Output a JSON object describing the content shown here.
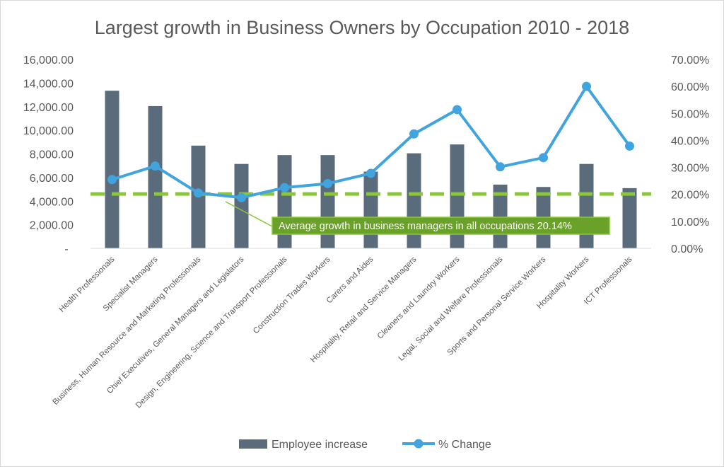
{
  "chart_data": {
    "type": "bar",
    "title": "Largest growth in Business Owners by Occupation 2010 - 2018",
    "categories": [
      "Health Professionals",
      "Specialist Managers",
      "Business, Human Resource and Marketing Professionals",
      "Chief Executives, General Managers and Legislators",
      "Design, Engineering, Science and Transport Professionals",
      "Construction Trades Workers",
      "Carers and Aides",
      "Hospitality, Retail and Service Managers",
      "Cleaners and Laundry Workers",
      "Legal, Social and Welfare Professionals",
      "Sports and Personal Service Workers",
      "Hospitality Workers",
      "ICT Professionals"
    ],
    "series": [
      {
        "name": "Employee increase",
        "type": "bar",
        "axis": "left",
        "color": "#5a6b7b",
        "values": [
          13350,
          12050,
          8700,
          7150,
          7900,
          7900,
          6500,
          8050,
          8800,
          5400,
          5200,
          7150,
          5100
        ]
      },
      {
        "name": "% Change",
        "type": "line",
        "axis": "right",
        "color": "#41a4de",
        "values": [
          0.255,
          0.305,
          0.205,
          0.188,
          0.225,
          0.24,
          0.278,
          0.424,
          0.514,
          0.302,
          0.336,
          0.6,
          0.379
        ]
      }
    ],
    "reference_line": {
      "axis": "right",
      "value": 0.2014,
      "color": "#8cc63e",
      "style": "dashed"
    },
    "annotation": {
      "text": "Average growth in business managers in all occupations 20.14%",
      "background": "#6aa229",
      "border": "#8cc63e"
    },
    "y_left": {
      "ylim": [
        0,
        16000
      ],
      "ticks": [
        0,
        2000,
        4000,
        6000,
        8000,
        10000,
        12000,
        14000,
        16000
      ],
      "tick_labels": [
        "-",
        "2,000.00",
        "4,000.00",
        "6,000.00",
        "8,000.00",
        "10,000.00",
        "12,000.00",
        "14,000.00",
        "16,000.00"
      ]
    },
    "y_right": {
      "ylim": [
        0,
        0.7
      ],
      "ticks": [
        0,
        0.1,
        0.2,
        0.3,
        0.4,
        0.5,
        0.6,
        0.7
      ],
      "tick_labels": [
        "0.00%",
        "10.00%",
        "20.00%",
        "30.00%",
        "40.00%",
        "50.00%",
        "60.00%",
        "70.00%"
      ]
    },
    "grid": false,
    "legend": "bottom",
    "text_color": "#595959",
    "axis_color": "#d9d9d9"
  }
}
